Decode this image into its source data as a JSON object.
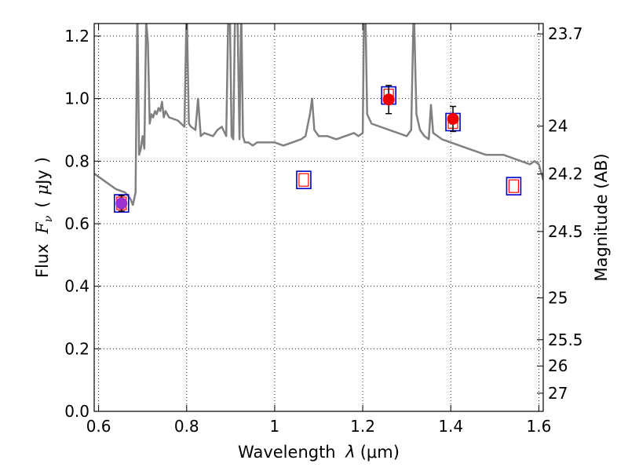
{
  "chart_data": {
    "type": "line",
    "title": "",
    "xlabel": "Wavelength  λ (μm)",
    "ylabel": "Flux  F_ν  ( μJy )",
    "ylabel_parts": {
      "prefix": "Flux ",
      "symbol": "F",
      "subscript": "ν",
      "open_paren": "(",
      "mu": "μ",
      "unit": "Jy",
      "close_paren": ")"
    },
    "xlabel_parts": {
      "prefix": "Wavelength ",
      "symbol": "λ",
      "unit": "(μm)"
    },
    "y2label": "Magnitude (AB)",
    "xlim": [
      0.59,
      1.61
    ],
    "ylim": [
      0.0,
      1.24
    ],
    "grid": true,
    "x_ticks": [
      {
        "value": 0.6,
        "label": "0.6"
      },
      {
        "value": 0.8,
        "label": "0.8"
      },
      {
        "value": 1.0,
        "label": "1"
      },
      {
        "value": 1.2,
        "label": "1.2"
      },
      {
        "value": 1.4,
        "label": "1.4"
      },
      {
        "value": 1.6,
        "label": "1.6"
      }
    ],
    "y_ticks": [
      {
        "value": 0.0,
        "label": "0.0"
      },
      {
        "value": 0.2,
        "label": "0.2"
      },
      {
        "value": 0.4,
        "label": "0.4"
      },
      {
        "value": 0.6,
        "label": "0.6"
      },
      {
        "value": 0.8,
        "label": "0.8"
      },
      {
        "value": 1.0,
        "label": "1.0"
      },
      {
        "value": 1.2,
        "label": "1.2"
      }
    ],
    "y2_ticks": [
      {
        "label": "23.7",
        "flux": 1.207
      },
      {
        "label": "24",
        "flux": 0.912
      },
      {
        "label": "24.2",
        "flux": 0.759
      },
      {
        "label": "24.5",
        "flux": 0.575
      },
      {
        "label": "25",
        "flux": 0.363
      },
      {
        "label": "25.5",
        "flux": 0.229
      },
      {
        "label": "26",
        "flux": 0.145
      },
      {
        "label": "27",
        "flux": 0.058
      }
    ],
    "series": [
      {
        "name": "model spectrum",
        "style": "line",
        "color": "#808080",
        "x": [
          0.59,
          0.6,
          0.62,
          0.64,
          0.66,
          0.672,
          0.678,
          0.684,
          0.688,
          0.692,
          0.696,
          0.7,
          0.704,
          0.708,
          0.712,
          0.716,
          0.72,
          0.724,
          0.728,
          0.732,
          0.736,
          0.74,
          0.744,
          0.748,
          0.752,
          0.756,
          0.76,
          0.78,
          0.795,
          0.8,
          0.805,
          0.81,
          0.82,
          0.826,
          0.832,
          0.84,
          0.86,
          0.87,
          0.88,
          0.89,
          0.895,
          0.898,
          0.902,
          0.906,
          0.91,
          0.915,
          0.92,
          0.924,
          0.928,
          0.932,
          0.94,
          0.95,
          0.96,
          0.98,
          1.0,
          1.02,
          1.04,
          1.06,
          1.07,
          1.08,
          1.085,
          1.09,
          1.1,
          1.12,
          1.14,
          1.16,
          1.18,
          1.19,
          1.2,
          1.203,
          1.206,
          1.21,
          1.22,
          1.24,
          1.26,
          1.28,
          1.3,
          1.31,
          1.316,
          1.322,
          1.33,
          1.34,
          1.35,
          1.355,
          1.36,
          1.37,
          1.38,
          1.4,
          1.42,
          1.44,
          1.46,
          1.48,
          1.5,
          1.52,
          1.54,
          1.56,
          1.58,
          1.59,
          1.6,
          1.61
        ],
        "y": [
          0.76,
          0.75,
          0.73,
          0.71,
          0.7,
          0.68,
          0.66,
          0.7,
          1.3,
          0.82,
          0.84,
          0.88,
          0.84,
          1.25,
          1.18,
          0.92,
          0.95,
          0.94,
          0.96,
          0.95,
          0.97,
          0.96,
          0.99,
          0.94,
          0.96,
          0.95,
          0.94,
          0.93,
          0.91,
          1.3,
          0.92,
          0.91,
          0.9,
          1.0,
          0.88,
          0.89,
          0.88,
          0.9,
          0.91,
          0.88,
          1.3,
          1.3,
          0.88,
          0.87,
          1.3,
          1.3,
          0.87,
          1.3,
          0.88,
          0.86,
          0.86,
          0.85,
          0.86,
          0.86,
          0.86,
          0.85,
          0.86,
          0.87,
          0.88,
          0.95,
          1.0,
          0.9,
          0.88,
          0.88,
          0.87,
          0.88,
          0.89,
          0.88,
          0.89,
          1.3,
          1.3,
          0.95,
          0.92,
          0.91,
          0.9,
          0.89,
          0.88,
          0.9,
          1.3,
          0.95,
          0.9,
          0.88,
          0.87,
          0.98,
          0.89,
          0.88,
          0.87,
          0.86,
          0.85,
          0.84,
          0.83,
          0.82,
          0.82,
          0.82,
          0.81,
          0.8,
          0.79,
          0.8,
          0.79,
          0.74
        ]
      },
      {
        "name": "model photometry (open squares)",
        "style": "marker-square",
        "x": [
          0.652,
          1.066,
          1.259,
          1.405,
          1.543
        ],
        "y": [
          0.665,
          0.74,
          1.01,
          0.925,
          0.72
        ]
      },
      {
        "name": "observed photometry (filled circles with error bars)",
        "style": "marker-circle",
        "x": [
          0.652,
          1.259,
          1.405
        ],
        "y": [
          0.665,
          0.997,
          0.935
        ],
        "yerr": [
          0.025,
          0.045,
          0.04
        ]
      }
    ]
  }
}
